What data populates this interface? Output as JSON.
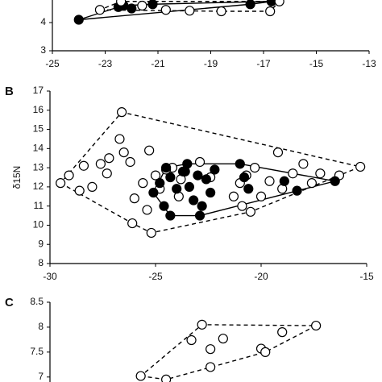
{
  "chart_data": [
    {
      "type": "scatter",
      "xlim": [
        -25,
        -13
      ],
      "xticks": [
        -25,
        -23,
        -21,
        -19,
        -17,
        -15,
        -13
      ],
      "ylim": [
        3,
        4.8
      ],
      "yticks": [
        3,
        4
      ],
      "series": [
        {
          "fill": "filled",
          "hull": "solid",
          "color": "#000000",
          "x": [
            -24,
            -22.5,
            -22.3,
            -22,
            -21.2,
            -17.5,
            -16.7
          ],
          "y": [
            4.1,
            4.55,
            4.6,
            4.5,
            4.65,
            4.65,
            4.75
          ]
        },
        {
          "fill": "open",
          "hull": "dashed",
          "color": "#000000",
          "x": [
            -23.2,
            -22.4,
            -21.6,
            -20.7,
            -19.8,
            -18.6,
            -16.75,
            -16.4
          ],
          "y": [
            4.45,
            4.75,
            4.6,
            4.45,
            4.42,
            4.4,
            4.4,
            4.75
          ]
        }
      ]
    },
    {
      "type": "scatter",
      "panel_label": "B",
      "y_label": "δ15N",
      "xlim": [
        -30,
        -15
      ],
      "xticks": [
        -30,
        -25,
        -20,
        -15
      ],
      "ylim": [
        8,
        17
      ],
      "yticks": [
        8,
        9,
        10,
        11,
        12,
        13,
        14,
        15,
        16,
        17
      ],
      "series": [
        {
          "fill": "open",
          "hull": "dashed",
          "color": "#000000",
          "x": [
            -26.6,
            -29.5,
            -29.1,
            -28.4,
            -27.6,
            -27.2,
            -26.7,
            -26.5,
            -25.3,
            -26.2,
            -27.3,
            -28,
            -28.6,
            -25.6,
            -26,
            -25.4,
            -26.1,
            -25.2,
            -25,
            -24.2,
            -24.8,
            -23.9,
            -22.4,
            -21.3,
            -21,
            -20.9,
            -20.5,
            -20.7,
            -20.3,
            -20,
            -19.2,
            -19.6,
            -19,
            -18.5,
            -18,
            -17.6,
            -17.2,
            -16.3,
            -15.3,
            -23.8,
            -24.5,
            -22.9
          ],
          "y": [
            15.9,
            12.2,
            12.6,
            13.1,
            13.2,
            13.5,
            14.5,
            13.8,
            13.9,
            13.3,
            12.7,
            12,
            11.8,
            12.2,
            11.4,
            10.8,
            10.1,
            9.6,
            12.6,
            13,
            11.9,
            11.5,
            12.5,
            11.5,
            12.2,
            11,
            10.7,
            12.6,
            13,
            11.5,
            13.8,
            12.3,
            11.9,
            12.7,
            13.2,
            12.2,
            12.7,
            12.6,
            13.05,
            12.4,
            12.9,
            13.3
          ]
        },
        {
          "fill": "filled",
          "hull": "solid",
          "color": "#000000",
          "x": [
            -25.1,
            -24.8,
            -24.5,
            -24.3,
            -24,
            -23.7,
            -23.5,
            -23.4,
            -23.2,
            -23,
            -22.8,
            -22.6,
            -22.4,
            -22.2,
            -24.3,
            -22.9,
            -23.6,
            -21,
            -20.8,
            -20.6,
            -18.9,
            -18.3,
            -16.5,
            -24.6
          ],
          "y": [
            11.7,
            12.2,
            13,
            12.5,
            11.9,
            12.8,
            13.2,
            12,
            11.3,
            12.6,
            11,
            12.4,
            11.7,
            12.9,
            10.5,
            10.5,
            12.8,
            13.2,
            12.5,
            11.9,
            12.3,
            11.8,
            12.3,
            11
          ]
        }
      ]
    },
    {
      "type": "scatter",
      "panel_label": "C",
      "xlim": [
        -30,
        -15
      ],
      "ylim": [
        6.9,
        8.5
      ],
      "yticks": [
        7,
        7.5,
        8,
        8.5
      ],
      "series": [
        {
          "fill": "open",
          "hull": "dashed",
          "color": "#000000",
          "x": [
            -22.8,
            -23.3,
            -21.8,
            -22.4,
            -22.4,
            -20,
            -19.8,
            -19,
            -17.4,
            -25.7,
            -24.5
          ],
          "y": [
            8.05,
            7.74,
            7.77,
            7.56,
            7.2,
            7.57,
            7.5,
            7.9,
            8.03,
            7.02,
            6.95
          ]
        }
      ]
    }
  ]
}
